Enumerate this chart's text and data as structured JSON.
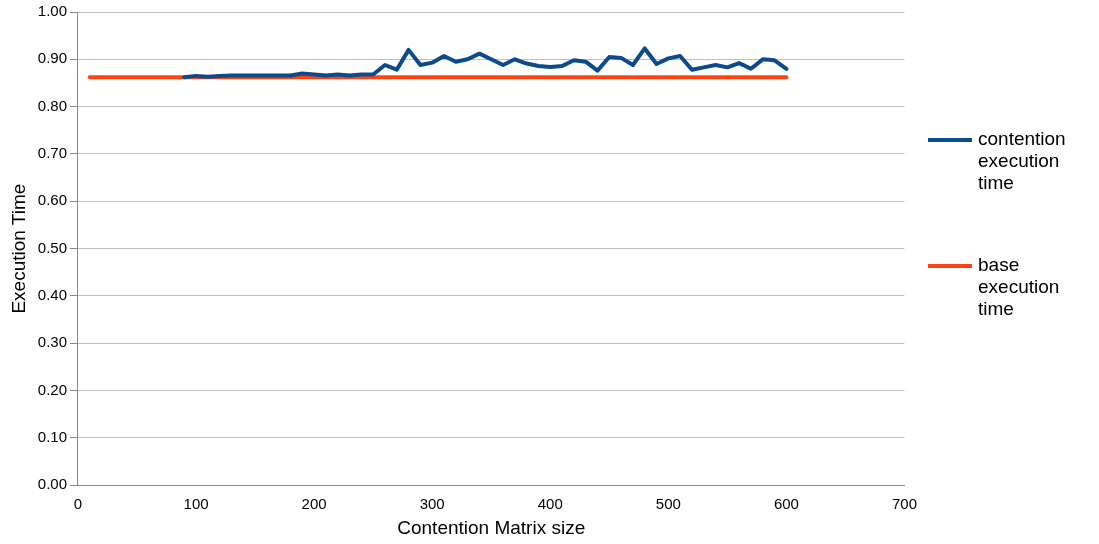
{
  "chart_data": {
    "type": "line",
    "xlabel": "Contention Matrix size",
    "ylabel": "Execution Time",
    "x": [
      10,
      20,
      30,
      40,
      50,
      60,
      70,
      80,
      90,
      100,
      110,
      120,
      130,
      140,
      150,
      160,
      170,
      180,
      190,
      200,
      210,
      220,
      230,
      240,
      250,
      260,
      270,
      280,
      290,
      300,
      310,
      320,
      330,
      340,
      350,
      360,
      370,
      380,
      390,
      400,
      410,
      420,
      430,
      440,
      450,
      460,
      470,
      480,
      490,
      500,
      510,
      520,
      530,
      540,
      550,
      560,
      570,
      580,
      590,
      600
    ],
    "series": [
      {
        "name": "contention execution time",
        "color": "#0b4a8b",
        "values": [
          null,
          null,
          null,
          null,
          null,
          null,
          null,
          null,
          0.862,
          0.865,
          0.863,
          0.865,
          0.866,
          0.866,
          0.866,
          0.866,
          0.866,
          0.866,
          0.87,
          0.868,
          0.866,
          0.868,
          0.866,
          0.868,
          0.868,
          0.888,
          0.878,
          0.92,
          0.888,
          0.893,
          0.907,
          0.895,
          0.9,
          0.912,
          0.9,
          0.888,
          0.9,
          0.891,
          0.886,
          0.884,
          0.886,
          0.898,
          0.895,
          0.876,
          0.905,
          0.903,
          0.888,
          0.923,
          0.89,
          0.902,
          0.907,
          0.878,
          0.883,
          0.888,
          0.883,
          0.892,
          0.88,
          0.9,
          0.898,
          0.88
        ]
      },
      {
        "name": "base execution time",
        "color": "#ff4412",
        "values": [
          0.862,
          0.862,
          0.862,
          0.862,
          0.862,
          0.862,
          0.862,
          0.862,
          0.862,
          0.862,
          0.862,
          0.862,
          0.862,
          0.862,
          0.862,
          0.862,
          0.862,
          0.862,
          0.862,
          0.862,
          0.862,
          0.862,
          0.862,
          0.862,
          0.862,
          0.862,
          0.862,
          0.862,
          0.862,
          0.862,
          0.862,
          0.862,
          0.862,
          0.862,
          0.862,
          0.862,
          0.862,
          0.862,
          0.862,
          0.862,
          0.862,
          0.862,
          0.862,
          0.862,
          0.862,
          0.862,
          0.862,
          0.862,
          0.862,
          0.862,
          0.862,
          0.862,
          0.862,
          0.862,
          0.862,
          0.862,
          0.862,
          0.862,
          0.862,
          0.862
        ]
      }
    ],
    "xlim": [
      0,
      700
    ],
    "xticks": [
      0,
      100,
      200,
      300,
      400,
      500,
      600,
      700
    ],
    "ylim": [
      0,
      1
    ],
    "yticks": [
      {
        "value": 0,
        "label": "0.00"
      },
      {
        "value": 0.1,
        "label": "0.10"
      },
      {
        "value": 0.2,
        "label": "0.20"
      },
      {
        "value": 0.3,
        "label": "0.30"
      },
      {
        "value": 0.4,
        "label": "0.40"
      },
      {
        "value": 0.5,
        "label": "0.50"
      },
      {
        "value": 0.6,
        "label": "0.60"
      },
      {
        "value": 0.7,
        "label": "0.70"
      },
      {
        "value": 0.8,
        "label": "0.80"
      },
      {
        "value": 0.9,
        "label": "0.90"
      },
      {
        "value": 1,
        "label": "1.00"
      }
    ],
    "grid": "y",
    "legend": "right",
    "marker": "none",
    "line_style": "solid"
  }
}
